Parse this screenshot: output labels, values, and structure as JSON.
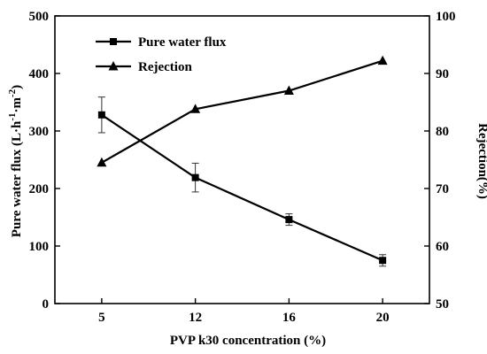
{
  "chart_data": {
    "type": "line",
    "x": [
      5,
      12,
      16,
      20
    ],
    "categories": [
      "5",
      "12",
      "16",
      "20"
    ],
    "xlabel": "PVP k30 concentration (%)",
    "ylabel_left": {
      "main": "Pure water flux (L·h",
      "sup1": "-1",
      "mid": "·m",
      "sup2": "-2",
      "end": ")"
    },
    "ylabel_right": "Rejection(%)",
    "ylim_left": [
      0,
      500
    ],
    "ylim_right": [
      50,
      100
    ],
    "yticks_left": [
      "0",
      "100",
      "200",
      "300",
      "400",
      "500"
    ],
    "yticks_right": [
      "50",
      "60",
      "70",
      "80",
      "90",
      "100"
    ],
    "series": [
      {
        "name": "Pure water flux",
        "axis": "left",
        "marker": "square",
        "values": [
          328,
          219,
          146,
          75
        ],
        "errors": [
          31,
          25,
          10,
          10
        ]
      },
      {
        "name": "Rejection",
        "axis": "right",
        "marker": "triangle",
        "values": [
          74.5,
          83.8,
          87.0,
          92.2
        ]
      }
    ],
    "legend_position": "top-left",
    "grid": false
  }
}
